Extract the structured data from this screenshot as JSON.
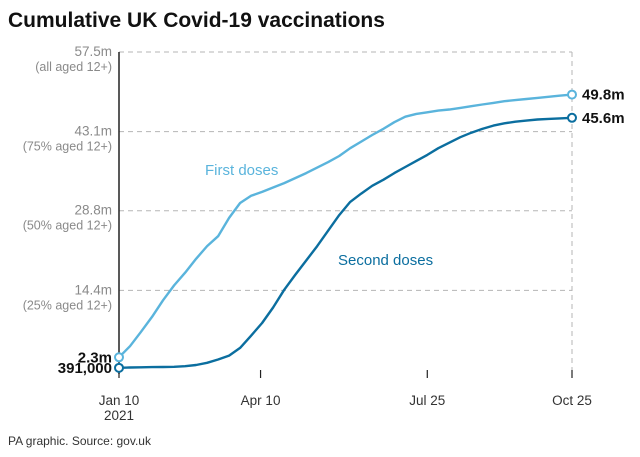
{
  "chart_data": {
    "type": "line",
    "title": "Cumulative UK Covid-19 vaccinations",
    "source": "PA graphic. Source: gov.uk",
    "ylim": [
      0,
      57.5
    ],
    "y_ticks": [
      {
        "value": 57.5,
        "label": "57.5m",
        "sublabel": "(all aged 12+)"
      },
      {
        "value": 43.1,
        "label": "43.1m",
        "sublabel": "(75% aged 12+)"
      },
      {
        "value": 28.8,
        "label": "28.8m",
        "sublabel": "(50% aged 12+)"
      },
      {
        "value": 14.4,
        "label": "14.4m",
        "sublabel": "(25% aged 12+)"
      }
    ],
    "x_ticks": [
      {
        "date": "2021-01-10",
        "label": "Jan 10",
        "sublabel": "2021"
      },
      {
        "date": "2021-04-10",
        "label": "Apr 10",
        "sublabel": ""
      },
      {
        "date": "2021-07-25",
        "label": "Jul 25",
        "sublabel": ""
      },
      {
        "date": "2021-10-25",
        "label": "Oct 25",
        "sublabel": ""
      }
    ],
    "xlim": [
      "2021-01-10",
      "2021-10-25"
    ],
    "colors": {
      "first": "#5ab4dc",
      "second": "#0b6e9f",
      "grid": "#b5b5b5",
      "axis": "#222222"
    },
    "series": [
      {
        "name": "First doses",
        "start_label": "2.3m",
        "end_label": "49.8m",
        "x": [
          "2021-01-10",
          "2021-01-17",
          "2021-01-24",
          "2021-01-31",
          "2021-02-07",
          "2021-02-14",
          "2021-02-21",
          "2021-02-28",
          "2021-03-07",
          "2021-03-14",
          "2021-03-21",
          "2021-03-28",
          "2021-04-04",
          "2021-04-11",
          "2021-04-18",
          "2021-04-25",
          "2021-05-02",
          "2021-05-09",
          "2021-05-16",
          "2021-05-23",
          "2021-05-30",
          "2021-06-06",
          "2021-06-13",
          "2021-06-20",
          "2021-06-27",
          "2021-07-04",
          "2021-07-11",
          "2021-07-18",
          "2021-07-25",
          "2021-08-01",
          "2021-08-08",
          "2021-08-15",
          "2021-08-22",
          "2021-08-29",
          "2021-09-05",
          "2021-09-12",
          "2021-09-19",
          "2021-09-26",
          "2021-10-03",
          "2021-10-10",
          "2021-10-17",
          "2021-10-25"
        ],
        "values": [
          2.3,
          4.3,
          6.9,
          9.6,
          12.6,
          15.3,
          17.6,
          20.1,
          22.4,
          24.2,
          27.5,
          30.2,
          31.5,
          32.2,
          33.0,
          33.8,
          34.7,
          35.6,
          36.6,
          37.6,
          38.7,
          40.1,
          41.3,
          42.5,
          43.6,
          44.8,
          45.8,
          46.3,
          46.6,
          46.9,
          47.1,
          47.4,
          47.7,
          48.0,
          48.3,
          48.6,
          48.8,
          49.0,
          49.2,
          49.4,
          49.6,
          49.8
        ]
      },
      {
        "name": "Second doses",
        "start_label": "391,000",
        "end_label": "45.6m",
        "x": [
          "2021-01-10",
          "2021-01-17",
          "2021-01-24",
          "2021-01-31",
          "2021-02-07",
          "2021-02-14",
          "2021-02-21",
          "2021-02-28",
          "2021-03-07",
          "2021-03-14",
          "2021-03-21",
          "2021-03-28",
          "2021-04-04",
          "2021-04-11",
          "2021-04-18",
          "2021-04-25",
          "2021-05-02",
          "2021-05-09",
          "2021-05-16",
          "2021-05-23",
          "2021-05-30",
          "2021-06-06",
          "2021-06-13",
          "2021-06-20",
          "2021-06-27",
          "2021-07-04",
          "2021-07-11",
          "2021-07-18",
          "2021-07-25",
          "2021-08-01",
          "2021-08-08",
          "2021-08-15",
          "2021-08-22",
          "2021-08-29",
          "2021-09-05",
          "2021-09-12",
          "2021-09-19",
          "2021-09-26",
          "2021-10-03",
          "2021-10-10",
          "2021-10-17",
          "2021-10-25"
        ],
        "values": [
          0.391,
          0.45,
          0.49,
          0.52,
          0.55,
          0.58,
          0.68,
          0.9,
          1.3,
          1.9,
          2.6,
          4.0,
          6.2,
          8.5,
          11.3,
          14.5,
          17.2,
          19.8,
          22.4,
          25.2,
          28.0,
          30.4,
          31.9,
          33.3,
          34.4,
          35.6,
          36.7,
          37.8,
          38.9,
          40.1,
          41.1,
          42.1,
          42.9,
          43.6,
          44.2,
          44.6,
          44.9,
          45.1,
          45.3,
          45.4,
          45.5,
          45.6
        ]
      }
    ],
    "series_label_positions": {
      "first": "upper-left of curve",
      "second": "lower-right of curve"
    }
  }
}
